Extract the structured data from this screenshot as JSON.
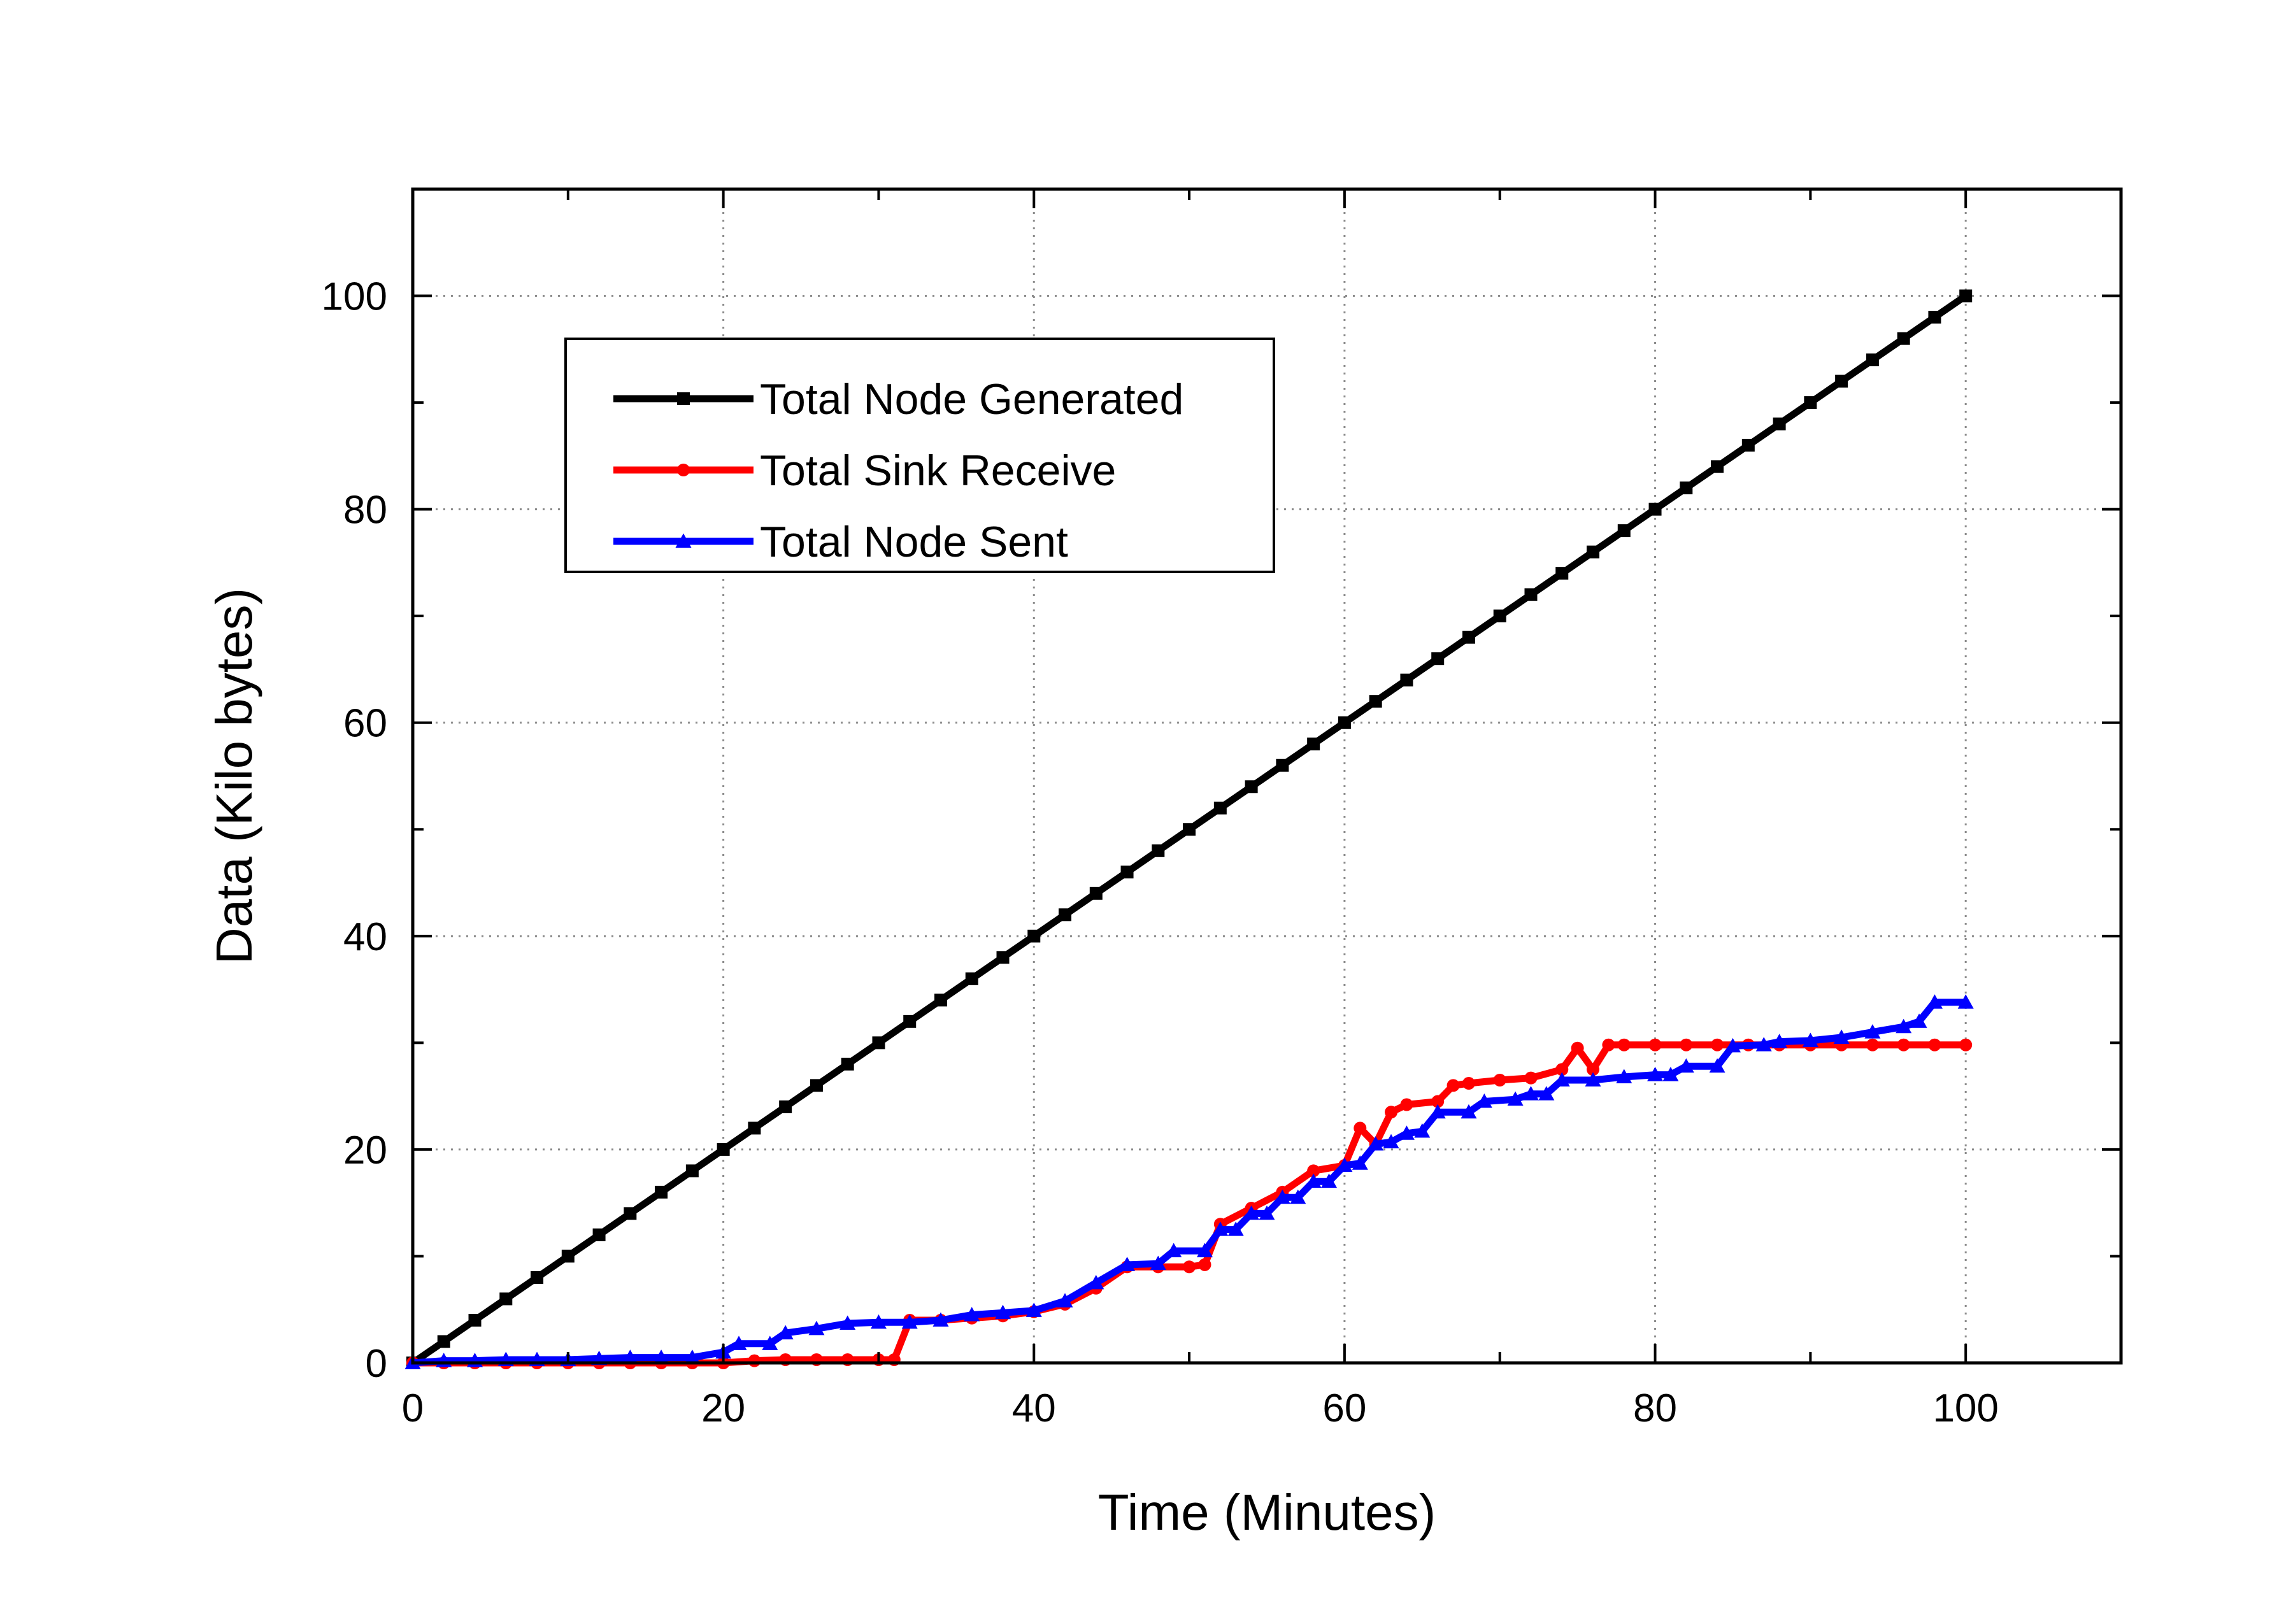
{
  "chart_data": {
    "type": "line",
    "title": "",
    "xlabel": "Time (Minutes)",
    "ylabel": "Data (Kilo bytes)",
    "xlim": [
      0,
      110
    ],
    "ylim": [
      0,
      110
    ],
    "xticks": [
      0,
      20,
      40,
      60,
      80,
      100
    ],
    "yticks": [
      0,
      20,
      40,
      60,
      80,
      100
    ],
    "grid": true,
    "legend_position": "upper-left",
    "series": [
      {
        "name": "Total Node Generated",
        "color": "#000000",
        "marker": "square",
        "points": [
          [
            0,
            0
          ],
          [
            2,
            2
          ],
          [
            4,
            4
          ],
          [
            6,
            6
          ],
          [
            8,
            8
          ],
          [
            10,
            10
          ],
          [
            12,
            12
          ],
          [
            14,
            14
          ],
          [
            16,
            16
          ],
          [
            18,
            18
          ],
          [
            20,
            20
          ],
          [
            22,
            22
          ],
          [
            24,
            24
          ],
          [
            26,
            26
          ],
          [
            28,
            28
          ],
          [
            30,
            30
          ],
          [
            32,
            32
          ],
          [
            34,
            34
          ],
          [
            36,
            36
          ],
          [
            38,
            38
          ],
          [
            40,
            40
          ],
          [
            42,
            42
          ],
          [
            44,
            44
          ],
          [
            46,
            46
          ],
          [
            48,
            48
          ],
          [
            50,
            50
          ],
          [
            52,
            52
          ],
          [
            54,
            54
          ],
          [
            56,
            56
          ],
          [
            58,
            58
          ],
          [
            60,
            60
          ],
          [
            62,
            62
          ],
          [
            64,
            64
          ],
          [
            66,
            66
          ],
          [
            68,
            68
          ],
          [
            70,
            70
          ],
          [
            72,
            72
          ],
          [
            74,
            74
          ],
          [
            76,
            76
          ],
          [
            78,
            78
          ],
          [
            80,
            80
          ],
          [
            82,
            82
          ],
          [
            84,
            84
          ],
          [
            86,
            86
          ],
          [
            88,
            88
          ],
          [
            90,
            90
          ],
          [
            92,
            92
          ],
          [
            94,
            94
          ],
          [
            96,
            96
          ],
          [
            98,
            98
          ],
          [
            100,
            100
          ]
        ]
      },
      {
        "name": "Total Sink Receive",
        "color": "#ff0000",
        "marker": "circle",
        "points": [
          [
            0,
            0
          ],
          [
            2,
            0
          ],
          [
            4,
            0
          ],
          [
            6,
            0
          ],
          [
            8,
            0
          ],
          [
            10,
            0
          ],
          [
            12,
            0
          ],
          [
            14,
            0
          ],
          [
            16,
            0
          ],
          [
            18,
            0
          ],
          [
            20,
            0
          ],
          [
            22,
            0.2
          ],
          [
            24,
            0.3
          ],
          [
            26,
            0.3
          ],
          [
            28,
            0.3
          ],
          [
            30,
            0.3
          ],
          [
            31,
            0.3
          ],
          [
            32,
            4
          ],
          [
            34,
            4
          ],
          [
            36,
            4.2
          ],
          [
            38,
            4.4
          ],
          [
            40,
            4.8
          ],
          [
            42,
            5.5
          ],
          [
            44,
            7
          ],
          [
            46,
            9
          ],
          [
            48,
            9
          ],
          [
            50,
            9
          ],
          [
            51,
            9.2
          ],
          [
            52,
            13
          ],
          [
            54,
            14.5
          ],
          [
            56,
            16
          ],
          [
            58,
            18
          ],
          [
            60,
            18.5
          ],
          [
            61,
            22
          ],
          [
            62,
            20.5
          ],
          [
            63,
            23.5
          ],
          [
            64,
            24.2
          ],
          [
            66,
            24.5
          ],
          [
            67,
            26
          ],
          [
            68,
            26.2
          ],
          [
            70,
            26.5
          ],
          [
            72,
            26.7
          ],
          [
            74,
            27.5
          ],
          [
            75,
            29.5
          ],
          [
            76,
            27.5
          ],
          [
            77,
            29.8
          ],
          [
            78,
            29.8
          ],
          [
            80,
            29.8
          ],
          [
            82,
            29.8
          ],
          [
            84,
            29.8
          ],
          [
            86,
            29.8
          ],
          [
            88,
            29.8
          ],
          [
            90,
            29.8
          ],
          [
            92,
            29.8
          ],
          [
            94,
            29.8
          ],
          [
            96,
            29.8
          ],
          [
            98,
            29.8
          ],
          [
            100,
            29.8
          ]
        ]
      },
      {
        "name": "Total Node Sent",
        "color": "#0000ff",
        "marker": "triangle",
        "points": [
          [
            0,
            0
          ],
          [
            2,
            0.2
          ],
          [
            4,
            0.2
          ],
          [
            6,
            0.3
          ],
          [
            8,
            0.3
          ],
          [
            10,
            0.3
          ],
          [
            12,
            0.4
          ],
          [
            14,
            0.5
          ],
          [
            16,
            0.5
          ],
          [
            18,
            0.5
          ],
          [
            20,
            1
          ],
          [
            21,
            1.8
          ],
          [
            23,
            1.8
          ],
          [
            24,
            2.8
          ],
          [
            26,
            3.2
          ],
          [
            28,
            3.7
          ],
          [
            30,
            3.8
          ],
          [
            32,
            3.8
          ],
          [
            34,
            4
          ],
          [
            36,
            4.5
          ],
          [
            38,
            4.7
          ],
          [
            40,
            4.9
          ],
          [
            42,
            5.8
          ],
          [
            44,
            7.5
          ],
          [
            46,
            9.2
          ],
          [
            48,
            9.3
          ],
          [
            49,
            10.5
          ],
          [
            51,
            10.5
          ],
          [
            52,
            12.5
          ],
          [
            53,
            12.5
          ],
          [
            54,
            14
          ],
          [
            55,
            14
          ],
          [
            56,
            15.5
          ],
          [
            57,
            15.5
          ],
          [
            58,
            17
          ],
          [
            59,
            17
          ],
          [
            60,
            18.5
          ],
          [
            61,
            18.7
          ],
          [
            62,
            20.5
          ],
          [
            63,
            20.7
          ],
          [
            64,
            21.5
          ],
          [
            65,
            21.7
          ],
          [
            66,
            23.5
          ],
          [
            68,
            23.5
          ],
          [
            69,
            24.5
          ],
          [
            71,
            24.7
          ],
          [
            72,
            25.2
          ],
          [
            73,
            25.2
          ],
          [
            74,
            26.5
          ],
          [
            76,
            26.5
          ],
          [
            78,
            26.8
          ],
          [
            80,
            27
          ],
          [
            81,
            27
          ],
          [
            82,
            27.8
          ],
          [
            84,
            27.8
          ],
          [
            85,
            29.7
          ],
          [
            87,
            29.8
          ],
          [
            88,
            30.1
          ],
          [
            90,
            30.2
          ],
          [
            92,
            30.5
          ],
          [
            94,
            31
          ],
          [
            96,
            31.5
          ],
          [
            97,
            32
          ],
          [
            98,
            33.8
          ],
          [
            100,
            33.8
          ]
        ]
      }
    ]
  }
}
